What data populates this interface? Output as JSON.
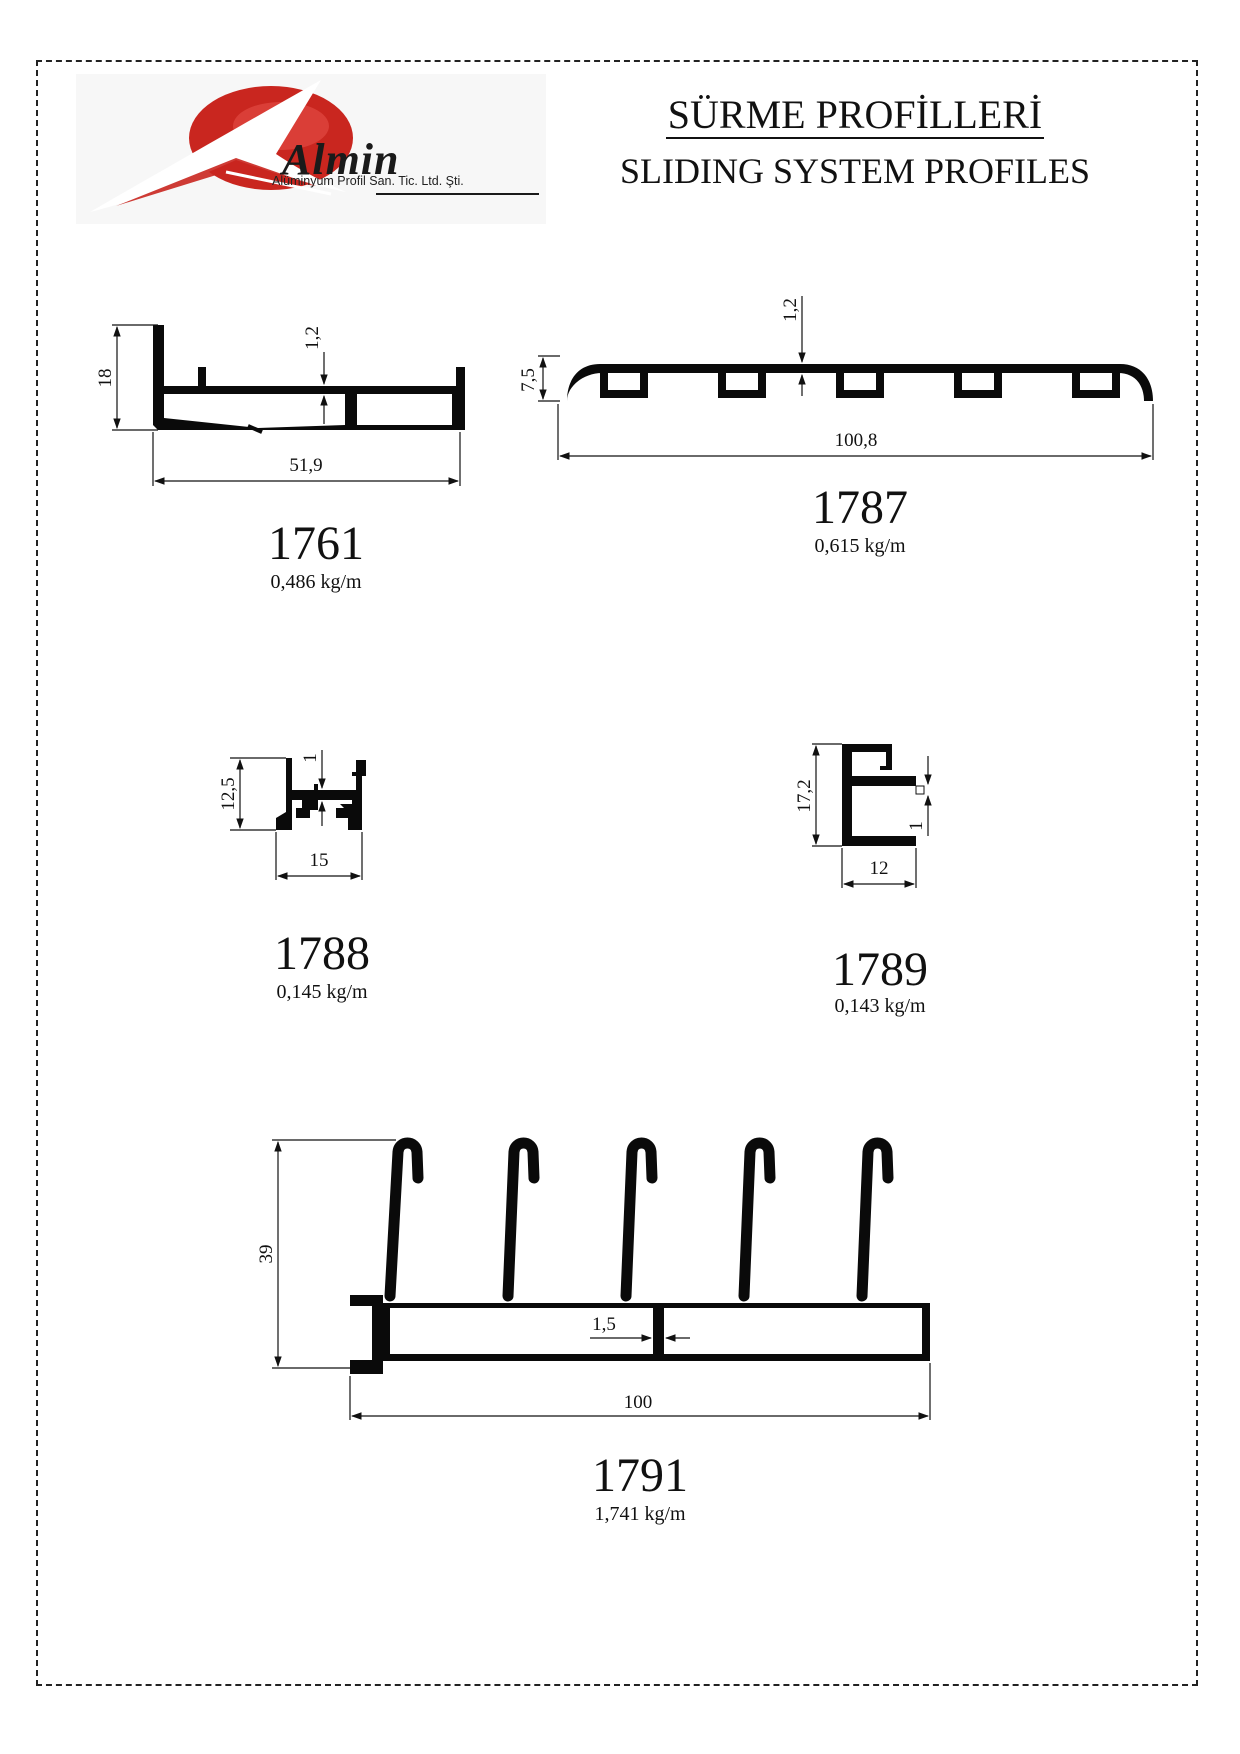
{
  "header": {
    "company_name": "Almin",
    "company_subtitle": "Alüminyum Profil San. Tic. Ltd. Şti.",
    "title_tr": "SÜRME PROFİLLERİ",
    "title_en": "SLIDING SYSTEM PROFILES"
  },
  "colors": {
    "brand_red": "#c9261f",
    "profile_fill": "#0a0a0a",
    "line": "#111111"
  },
  "profiles": [
    {
      "code": "1761",
      "weight": "0,486 kg/m",
      "dims": {
        "height": "18",
        "wall": "1,2",
        "width": "51,9"
      }
    },
    {
      "code": "1787",
      "weight": "0,615 kg/m",
      "dims": {
        "height": "7,5",
        "wall": "1,2",
        "width": "100,8"
      }
    },
    {
      "code": "1788",
      "weight": "0,145 kg/m",
      "dims": {
        "height": "12,5",
        "wall": "1",
        "width": "15"
      }
    },
    {
      "code": "1789",
      "weight": "0,143 kg/m",
      "dims": {
        "height": "17,2",
        "wall": "1",
        "width": "12"
      }
    },
    {
      "code": "1791",
      "weight": "1,741 kg/m",
      "dims": {
        "height": "39",
        "wall": "1,5",
        "width": "100"
      }
    }
  ]
}
